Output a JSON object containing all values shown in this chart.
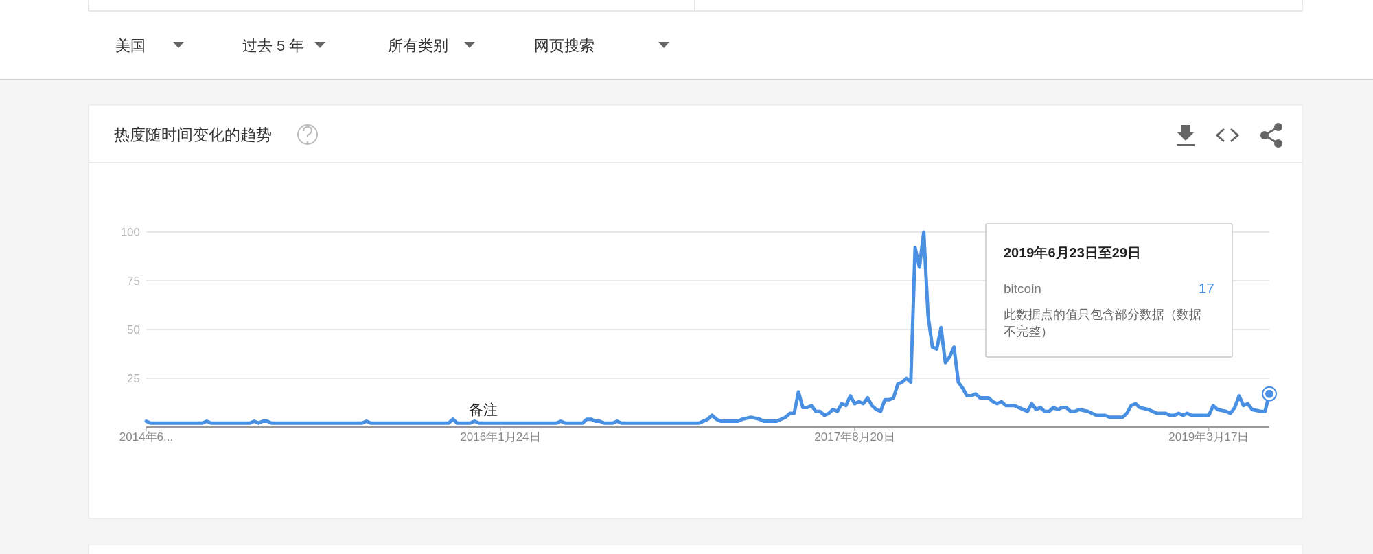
{
  "chart_data": {
    "type": "line",
    "title": "热度随时间变化的趋势",
    "annotations": [
      "美国",
      "过去 5 年",
      "所有类别",
      "网页搜索",
      {
        "text": "备注",
        "x": "2015-12-27",
        "y": 2
      },
      "2019年6月23日至29日",
      "17",
      "此数据点的值只包含部分数据（数据不完整）"
    ],
    "x": [
      "2014-06-29",
      "2014-07-06",
      "2014-09-28",
      "2014-10-05",
      "2014-10-12",
      "2014-12-14",
      "2014-12-21",
      "2014-12-28",
      "2015-01-04",
      "2015-01-11",
      "2015-01-18",
      "2015-06-14",
      "2015-06-21",
      "2015-06-28",
      "2015-11-01",
      "2015-11-08",
      "2015-11-15",
      "2015-12-06",
      "2015-12-13",
      "2015-12-20",
      "2016-04-24",
      "2016-05-01",
      "2016-05-08",
      "2016-06-05",
      "2016-06-12",
      "2016-06-19",
      "2016-06-26",
      "2016-07-03",
      "2016-07-10",
      "2016-07-24",
      "2016-07-31",
      "2016-08-07",
      "2016-12-11",
      "2016-12-25",
      "2017-01-01",
      "2017-01-08",
      "2017-01-15",
      "2017-02-12",
      "2017-02-19",
      "2017-03-05",
      "2017-03-19",
      "2017-03-26",
      "2017-04-16",
      "2017-04-30",
      "2017-05-07",
      "2017-05-14",
      "2017-05-21",
      "2017-05-28",
      "2017-06-04",
      "2017-06-11",
      "2017-06-18",
      "2017-06-25",
      "2017-07-02",
      "2017-07-09",
      "2017-07-16",
      "2017-07-23",
      "2017-07-30",
      "2017-08-06",
      "2017-08-13",
      "2017-08-20",
      "2017-08-27",
      "2017-09-03",
      "2017-09-10",
      "2017-09-17",
      "2017-09-24",
      "2017-10-01",
      "2017-10-08",
      "2017-10-15",
      "2017-10-22",
      "2017-10-29",
      "2017-11-05",
      "2017-11-12",
      "2017-11-19",
      "2017-11-26",
      "2017-12-03",
      "2017-12-10",
      "2017-12-17",
      "2017-12-24",
      "2017-12-31",
      "2018-01-07",
      "2018-01-14",
      "2018-01-21",
      "2018-01-28",
      "2018-02-04",
      "2018-02-11",
      "2018-02-18",
      "2018-02-25",
      "2018-03-04",
      "2018-03-11",
      "2018-03-25",
      "2018-04-01",
      "2018-04-08",
      "2018-04-15",
      "2018-04-22",
      "2018-05-06",
      "2018-05-13",
      "2018-05-27",
      "2018-06-03",
      "2018-06-10",
      "2018-06-17",
      "2018-06-24",
      "2018-07-01",
      "2018-07-08",
      "2018-07-15",
      "2018-07-22",
      "2018-07-29",
      "2018-08-05",
      "2018-08-12",
      "2018-08-19",
      "2018-09-02",
      "2018-09-16",
      "2018-09-30",
      "2018-10-07",
      "2018-10-28",
      "2018-11-04",
      "2018-11-11",
      "2018-11-18",
      "2018-11-25",
      "2018-12-09",
      "2018-12-23",
      "2019-01-06",
      "2019-01-13",
      "2019-01-20",
      "2019-01-27",
      "2019-02-03",
      "2019-02-10",
      "2019-02-17",
      "2019-03-17",
      "2019-03-24",
      "2019-03-31",
      "2019-04-14",
      "2019-04-21",
      "2019-04-28",
      "2019-05-05",
      "2019-05-12",
      "2019-05-19",
      "2019-05-26",
      "2019-06-09",
      "2019-06-16",
      "2019-06-23"
    ],
    "series": [
      {
        "name": "bitcoin",
        "color": "#4a90e2",
        "values": [
          3,
          2,
          2,
          3,
          2,
          2,
          3,
          2,
          3,
          3,
          2,
          2,
          3,
          2,
          2,
          4,
          2,
          2,
          3,
          2,
          2,
          3,
          2,
          2,
          4,
          4,
          3,
          3,
          2,
          2,
          3,
          2,
          2,
          4,
          6,
          4,
          3,
          3,
          4,
          5,
          4,
          3,
          3,
          5,
          7,
          7,
          18,
          10,
          10,
          11,
          8,
          8,
          6,
          7,
          9,
          8,
          12,
          11,
          16,
          12,
          13,
          12,
          15,
          11,
          9,
          8,
          14,
          14,
          15,
          22,
          23,
          25,
          23,
          92,
          82,
          100,
          57,
          41,
          40,
          51,
          33,
          36,
          41,
          23,
          20,
          16,
          16,
          17,
          15,
          15,
          13,
          12,
          13,
          11,
          11,
          10,
          8,
          12,
          9,
          10,
          8,
          8,
          10,
          9,
          10,
          10,
          8,
          8,
          9,
          8,
          6,
          6,
          5,
          5,
          7,
          11,
          12,
          10,
          9,
          7,
          7,
          6,
          6,
          7,
          6,
          7,
          6,
          6,
          11,
          9,
          8,
          7,
          10,
          16,
          11,
          12,
          9,
          8,
          8,
          17
        ]
      }
    ],
    "xlim": [
      "2014-06-29",
      "2019-06-23"
    ],
    "xticks": [
      {
        "value": "2014-06-29",
        "label": "2014年6..."
      },
      {
        "value": "2016-01-24",
        "label": "2016年1月24日"
      },
      {
        "value": "2017-08-20",
        "label": "2017年8月20日"
      },
      {
        "value": "2019-03-17",
        "label": "2019年3月17日"
      }
    ],
    "ylim": [
      0,
      100
    ],
    "yticks": [
      25,
      50,
      75,
      100
    ],
    "grid": "y",
    "legend": false,
    "marker": "none",
    "line_style": "solid"
  }
}
